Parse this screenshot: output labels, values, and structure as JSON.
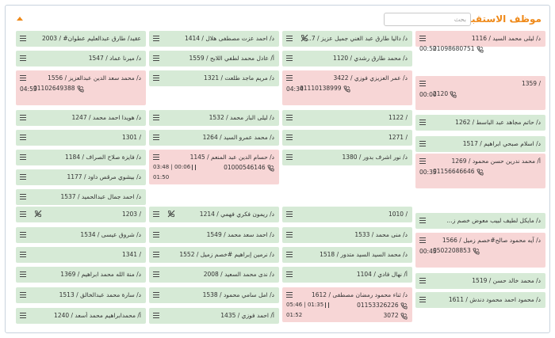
{
  "header": {
    "title": "موظف الاستقبال",
    "search_placeholder": "بحث"
  },
  "colors": {
    "green": "#d6ead6",
    "red": "#f7d6d6",
    "accent": "#ef8a1a"
  },
  "icons": {
    "menu": "menu-icon",
    "phone": "phone-icon",
    "dnd": "do-not-disturb-icon",
    "pause": "pause-icon",
    "collapse": "collapse-arrow-icon"
  },
  "columns": [
    [
      {
        "name": "د/ ليلى محمد السيد / 1116",
        "status": "red",
        "phone": "01098680751",
        "time": "00:52"
      },
      {
        "name": "/ 1359",
        "status": "red",
        "phone": "2120",
        "time": "00:00"
      },
      {
        "name": "د/ حاتم مجاهد عبد الباسط / 1262",
        "status": "green"
      },
      {
        "name": "د/ اسلام صبحي ابراهيم / 1517",
        "status": "green"
      },
      {
        "name": "أ/ محمد ندرين حسن محمود / 1269",
        "status": "red",
        "phone": "01156646646",
        "time": "00:35"
      },
      {
        "name": "د/ مايكل لطيف لبيب معوض خصم ز...",
        "status": "green"
      },
      {
        "name": "د/ آيه محمود صالح#خصم زميل / 1566",
        "status": "red",
        "phone": "0502208853",
        "time": "00:45"
      },
      {
        "name": "د/ محمد خالد حسن / 1519",
        "status": "green"
      },
      {
        "name": "د/ محمود احمد محمود دندش / 1611",
        "status": "green"
      }
    ],
    [
      {
        "name": "د/ داليا طارق عبد الغني جميل عزيز / 7...",
        "status": "green",
        "dnd": true
      },
      {
        "name": "د/ محمد طارق رشدي / 1120",
        "status": "green"
      },
      {
        "name": "د/ عمر العزيزي فوزي / 3422",
        "status": "red",
        "phone": "01110138999",
        "time": "04:34"
      },
      {
        "name": "/ 1122",
        "status": "green"
      },
      {
        "name": "/ 1271",
        "status": "green"
      },
      {
        "name": "د/ نور اشرف بدور / 1380",
        "status": "green"
      },
      {
        "name": "/ 1010",
        "status": "green"
      },
      {
        "name": "د/ منى محمد / 1533",
        "status": "green"
      },
      {
        "name": "د/ محمد السيد السيد متدور / 1518",
        "status": "green"
      },
      {
        "name": "أ/ نهال فادي / 1104",
        "status": "green"
      },
      {
        "name": "د/ ثناء محمود رمضان مصطفى / 1612",
        "status": "red",
        "phone": "01153326226",
        "ext": "3072",
        "timers": [
          "05:46",
          "01:35",
          "01:52"
        ]
      }
    ],
    [
      {
        "name": "د/ احمد عزت مصطفى هلال / 1414",
        "status": "green"
      },
      {
        "name": "أ/ عادل محمد لطفي اللابح / 1559",
        "status": "green"
      },
      {
        "name": "د/ مريم ماجد طلعت / 1321",
        "status": "green"
      },
      {
        "name": "د/ ليلى الباز محمد / 1532",
        "status": "green"
      },
      {
        "name": "د/ محمد عمرو السيد / 1264",
        "status": "green"
      },
      {
        "name": "د/ حسام الدين عبد المنعم / 1145",
        "status": "red",
        "phone": "01000546146",
        "timers": [
          "03:48",
          "00:06",
          "01:50"
        ]
      },
      {
        "name": "د/ ريمون فكري فهمي / 1214",
        "status": "green",
        "dnd": true
      },
      {
        "name": "د/ احمد سعد محمد / 1549",
        "status": "green"
      },
      {
        "name": "د/ نرمين إبراهيم #خصم زميل / 1552",
        "status": "green"
      },
      {
        "name": "د/ ندى محمد السعيد / 2008",
        "status": "green"
      },
      {
        "name": "د/ امل سامي محمود / 1538",
        "status": "green"
      },
      {
        "name": "أ/ احمد فوزي / 1435",
        "status": "green"
      }
    ],
    [
      {
        "name": "عقيد/ طارق عبدالعليم عطوان# / 2003",
        "status": "green"
      },
      {
        "name": "د/ ميرنا عماد / 1547",
        "status": "green"
      },
      {
        "name": "د/ محمد سعد الدين عبدالعزيز / 1556",
        "status": "red",
        "phone": "01102649388",
        "time": "04:53"
      },
      {
        "name": "د/ هويدا احمد محمد / 1247",
        "status": "green"
      },
      {
        "name": "/ 1301",
        "status": "green"
      },
      {
        "name": "د/ فايزة صلاح الصراف / 1184",
        "status": "green"
      },
      {
        "name": "د/ بيشوي مرقص داود / 1177",
        "status": "green"
      },
      {
        "name": "د/ احمد جمال عبدالحميد / 1537",
        "status": "green"
      },
      {
        "name": "/ 1203",
        "status": "green",
        "dnd": true
      },
      {
        "name": "د/ شروق عيسى / 1534",
        "status": "green"
      },
      {
        "name": "/ 1341",
        "status": "green"
      },
      {
        "name": "د/ منة الله محمد ابراهيم / 1369",
        "status": "green"
      },
      {
        "name": "د/ سارة محمد عبدالخالق / 1513",
        "status": "green"
      },
      {
        "name": "أ/ محمدابراهيم محمد أسعد / 1240",
        "status": "green"
      }
    ]
  ]
}
